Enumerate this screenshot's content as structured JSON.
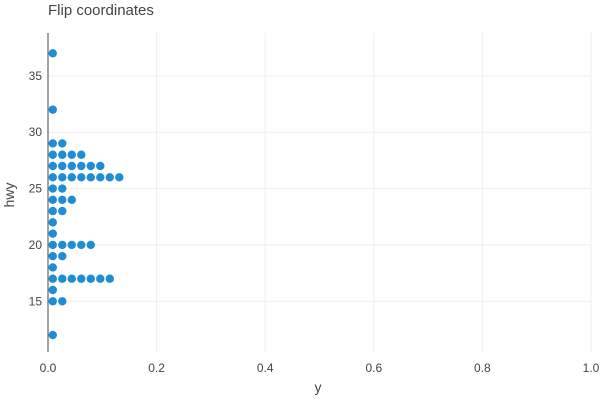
{
  "chart_data": {
    "type": "scatter",
    "title": "Flip coordinates",
    "xlabel": "y",
    "ylabel": "hwy",
    "xlim": [
      0,
      1
    ],
    "ylim": [
      10.5,
      38.8
    ],
    "x_ticks": [
      0,
      0.2,
      0.4,
      0.6,
      0.8,
      1
    ],
    "x_tick_labels": [
      "0.0",
      "0.2",
      "0.4",
      "0.6",
      "0.8",
      "1.0"
    ],
    "y_ticks": [
      15,
      20,
      25,
      30,
      35
    ],
    "y_tick_labels": [
      "15",
      "20",
      "25",
      "30",
      "35"
    ],
    "grid": true,
    "color": "#1f8dd6",
    "dot_step": 0.0175,
    "dot_offset": 0.0088,
    "stacks": [
      {
        "hwy": 12,
        "count": 1
      },
      {
        "hwy": 15,
        "count": 2
      },
      {
        "hwy": 16,
        "count": 1
      },
      {
        "hwy": 17,
        "count": 7
      },
      {
        "hwy": 18,
        "count": 1
      },
      {
        "hwy": 19,
        "count": 2
      },
      {
        "hwy": 20,
        "count": 5
      },
      {
        "hwy": 21,
        "count": 1
      },
      {
        "hwy": 22,
        "count": 1
      },
      {
        "hwy": 23,
        "count": 2
      },
      {
        "hwy": 24,
        "count": 3
      },
      {
        "hwy": 25,
        "count": 2
      },
      {
        "hwy": 26,
        "count": 8
      },
      {
        "hwy": 27,
        "count": 6
      },
      {
        "hwy": 28,
        "count": 4
      },
      {
        "hwy": 29,
        "count": 2
      },
      {
        "hwy": 32,
        "count": 1
      },
      {
        "hwy": 37,
        "count": 1
      }
    ]
  }
}
